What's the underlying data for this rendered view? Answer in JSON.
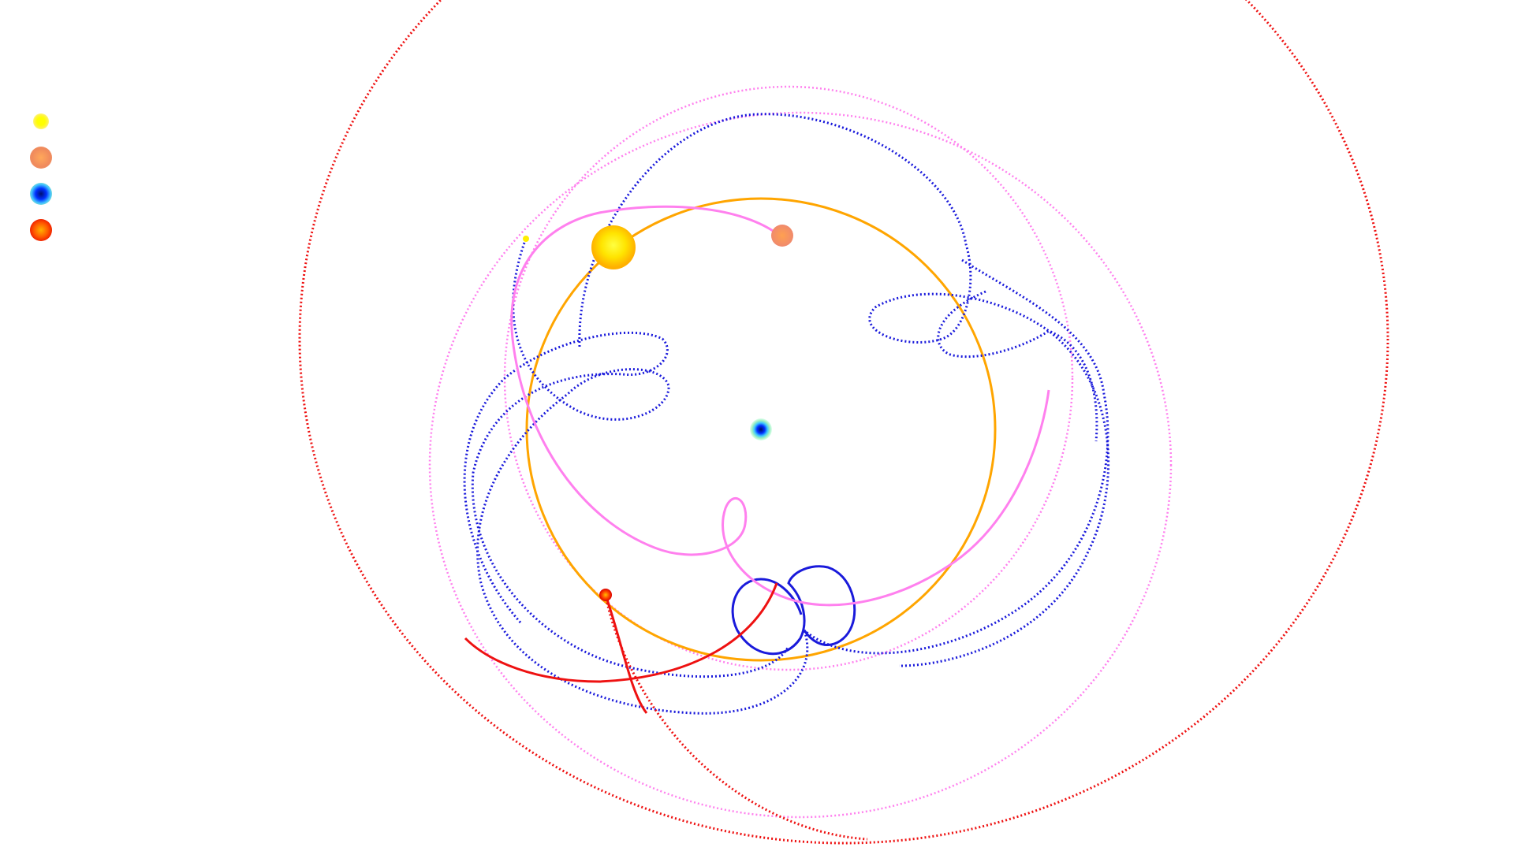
{
  "legend": {
    "items": [
      {
        "key": "sun",
        "icon": "sun-icon",
        "color": "#ffee00"
      },
      {
        "key": "mercury",
        "icon": "mercury-icon",
        "color": "#f08a5d"
      },
      {
        "key": "earth",
        "icon": "earth-icon",
        "color": "#0020ff"
      },
      {
        "key": "mars",
        "icon": "mars-icon",
        "color": "#ff2a00"
      }
    ]
  },
  "colors": {
    "sun_orbit": "#ffa500",
    "mercury_trail": "#ff80ee",
    "venus_trail": "#1a1adb",
    "mars_trail": "#ee1111",
    "earth_halo": "#7fe8c0"
  }
}
